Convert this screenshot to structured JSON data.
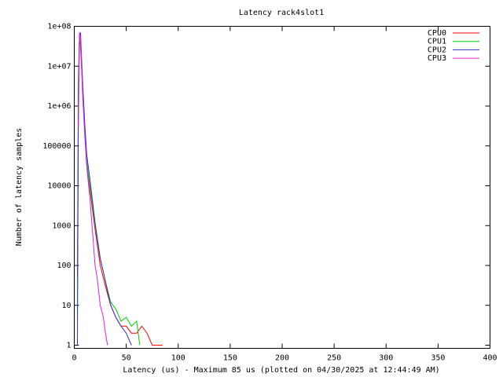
{
  "chart_data": {
    "type": "line",
    "title": "Latency rack4slot1",
    "x_label": "Latency (us) - Maximum 85 us (plotted on 04/30/2025 at 12:44:49 AM)",
    "y_label": "Number of latency samples",
    "y_scale": "log",
    "grid": false,
    "legend": "top right",
    "xlim": [
      0,
      400
    ],
    "xticks": [
      0,
      50,
      100,
      150,
      200,
      250,
      300,
      350,
      400
    ],
    "ylim": [
      1,
      100000000
    ],
    "yticks": [
      1,
      10,
      100,
      1000,
      10000,
      100000,
      {
        "value": 1000000,
        "label": "1e+06"
      },
      {
        "value": 10000000,
        "label": "1e+07"
      },
      {
        "value": 100000000,
        "label": "1e+08"
      }
    ],
    "series": [
      {
        "name": "CPU0",
        "color": "#ff0000",
        "x": [
          3,
          4,
          5,
          6,
          8,
          10,
          12,
          15,
          20,
          25,
          30,
          35,
          40,
          45,
          50,
          55,
          60,
          65,
          70,
          75,
          80,
          85
        ],
        "values": [
          50,
          5000000,
          60000000,
          30000000,
          3000000,
          300000,
          40000,
          8000,
          800,
          100,
          30,
          10,
          5,
          3,
          3,
          2,
          2,
          3,
          2,
          1,
          1,
          1
        ]
      },
      {
        "name": "CPU1",
        "color": "#00d000",
        "x": [
          3,
          4,
          5,
          6,
          8,
          10,
          12,
          15,
          20,
          25,
          30,
          35,
          40,
          45,
          50,
          55,
          60,
          63
        ],
        "values": [
          5,
          3000000,
          50000000,
          40000000,
          3000000,
          300000,
          40000,
          10000,
          1000,
          150,
          40,
          12,
          8,
          4,
          5,
          3,
          4,
          1
        ]
      },
      {
        "name": "CPU2",
        "color": "#3030d0",
        "x": [
          3,
          4,
          5,
          6,
          8,
          10,
          12,
          15,
          20,
          25,
          30,
          35,
          40,
          45,
          50,
          55
        ],
        "values": [
          1,
          2000000,
          50000000,
          70000000,
          4000000,
          400000,
          60000,
          15000,
          1200,
          150,
          40,
          10,
          5,
          3,
          2,
          1
        ]
      },
      {
        "name": "CPU3",
        "color": "#e020e0",
        "x": [
          4,
          5,
          6,
          7,
          8,
          10,
          12,
          15,
          18,
          20,
          22,
          25,
          28,
          30,
          32
        ],
        "values": [
          300000,
          70000000,
          50000000,
          10000000,
          2000000,
          200000,
          30000,
          5000,
          500,
          100,
          50,
          10,
          5,
          2,
          1
        ]
      }
    ]
  }
}
